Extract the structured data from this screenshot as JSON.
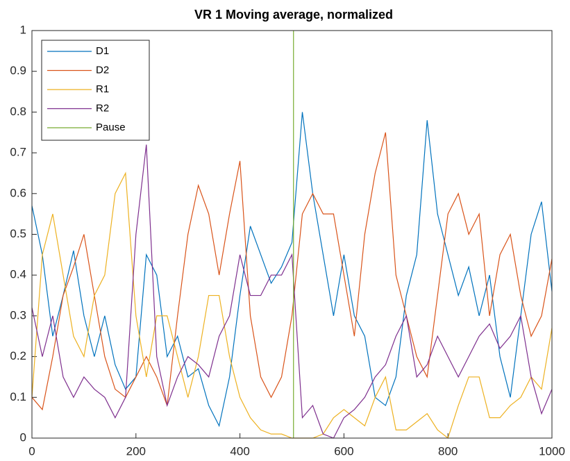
{
  "chart_data": {
    "type": "line",
    "title": "VR 1 Moving average, normalized",
    "x": [
      0,
      20,
      40,
      60,
      80,
      100,
      120,
      140,
      160,
      180,
      200,
      220,
      240,
      260,
      280,
      300,
      320,
      340,
      360,
      380,
      400,
      420,
      440,
      460,
      480,
      500,
      520,
      540,
      560,
      580,
      600,
      620,
      640,
      660,
      680,
      700,
      720,
      740,
      760,
      780,
      800,
      820,
      840,
      860,
      880,
      900,
      920,
      940,
      960,
      980,
      1000
    ],
    "series": [
      {
        "name": "D1",
        "color": "#0072BD",
        "values": [
          0.57,
          0.45,
          0.25,
          0.35,
          0.46,
          0.3,
          0.2,
          0.3,
          0.18,
          0.12,
          0.15,
          0.45,
          0.4,
          0.2,
          0.25,
          0.15,
          0.17,
          0.08,
          0.03,
          0.15,
          0.35,
          0.52,
          0.45,
          0.38,
          0.42,
          0.48,
          0.8,
          0.6,
          0.45,
          0.3,
          0.45,
          0.3,
          0.25,
          0.1,
          0.08,
          0.15,
          0.35,
          0.45,
          0.78,
          0.55,
          0.45,
          0.35,
          0.42,
          0.3,
          0.4,
          0.2,
          0.1,
          0.3,
          0.5,
          0.58,
          0.36
        ]
      },
      {
        "name": "D2",
        "color": "#D95319",
        "values": [
          0.1,
          0.07,
          0.2,
          0.35,
          0.42,
          0.5,
          0.35,
          0.2,
          0.12,
          0.1,
          0.15,
          0.2,
          0.15,
          0.08,
          0.3,
          0.5,
          0.62,
          0.55,
          0.4,
          0.55,
          0.68,
          0.3,
          0.15,
          0.1,
          0.15,
          0.3,
          0.55,
          0.6,
          0.55,
          0.55,
          0.4,
          0.25,
          0.5,
          0.65,
          0.75,
          0.4,
          0.3,
          0.2,
          0.15,
          0.35,
          0.55,
          0.6,
          0.5,
          0.55,
          0.3,
          0.45,
          0.5,
          0.35,
          0.25,
          0.3,
          0.44
        ]
      },
      {
        "name": "R1",
        "color": "#EDB120",
        "values": [
          0.1,
          0.45,
          0.55,
          0.4,
          0.25,
          0.2,
          0.35,
          0.4,
          0.6,
          0.65,
          0.3,
          0.15,
          0.3,
          0.3,
          0.2,
          0.1,
          0.2,
          0.35,
          0.35,
          0.2,
          0.1,
          0.05,
          0.02,
          0.01,
          0.01,
          0,
          0,
          0,
          0.01,
          0.05,
          0.07,
          0.05,
          0.03,
          0.1,
          0.15,
          0.02,
          0.02,
          0.04,
          0.06,
          0.02,
          0,
          0.08,
          0.15,
          0.15,
          0.05,
          0.05,
          0.08,
          0.1,
          0.15,
          0.12,
          0.27
        ]
      },
      {
        "name": "R2",
        "color": "#7E2F8E",
        "values": [
          0.32,
          0.2,
          0.3,
          0.15,
          0.1,
          0.15,
          0.12,
          0.1,
          0.05,
          0.1,
          0.5,
          0.72,
          0.2,
          0.08,
          0.15,
          0.2,
          0.18,
          0.15,
          0.25,
          0.3,
          0.45,
          0.35,
          0.35,
          0.4,
          0.4,
          0.45,
          0.05,
          0.08,
          0.01,
          0,
          0.05,
          0.07,
          0.1,
          0.15,
          0.18,
          0.25,
          0.3,
          0.15,
          0.18,
          0.25,
          0.2,
          0.15,
          0.2,
          0.25,
          0.28,
          0.22,
          0.25,
          0.3,
          0.15,
          0.06,
          0.12
        ]
      },
      {
        "name": "Pause",
        "color": "#77AC30",
        "x": [
          503,
          503
        ],
        "values": [
          0,
          1
        ]
      }
    ],
    "xlim": [
      0,
      1000
    ],
    "xticks": [
      0,
      200,
      400,
      600,
      800,
      1000
    ],
    "ylim": [
      0,
      1
    ],
    "yticks": [
      0,
      0.1,
      0.2,
      0.3,
      0.4,
      0.5,
      0.6,
      0.7,
      0.8,
      0.9,
      1
    ],
    "legend": "top-left"
  }
}
